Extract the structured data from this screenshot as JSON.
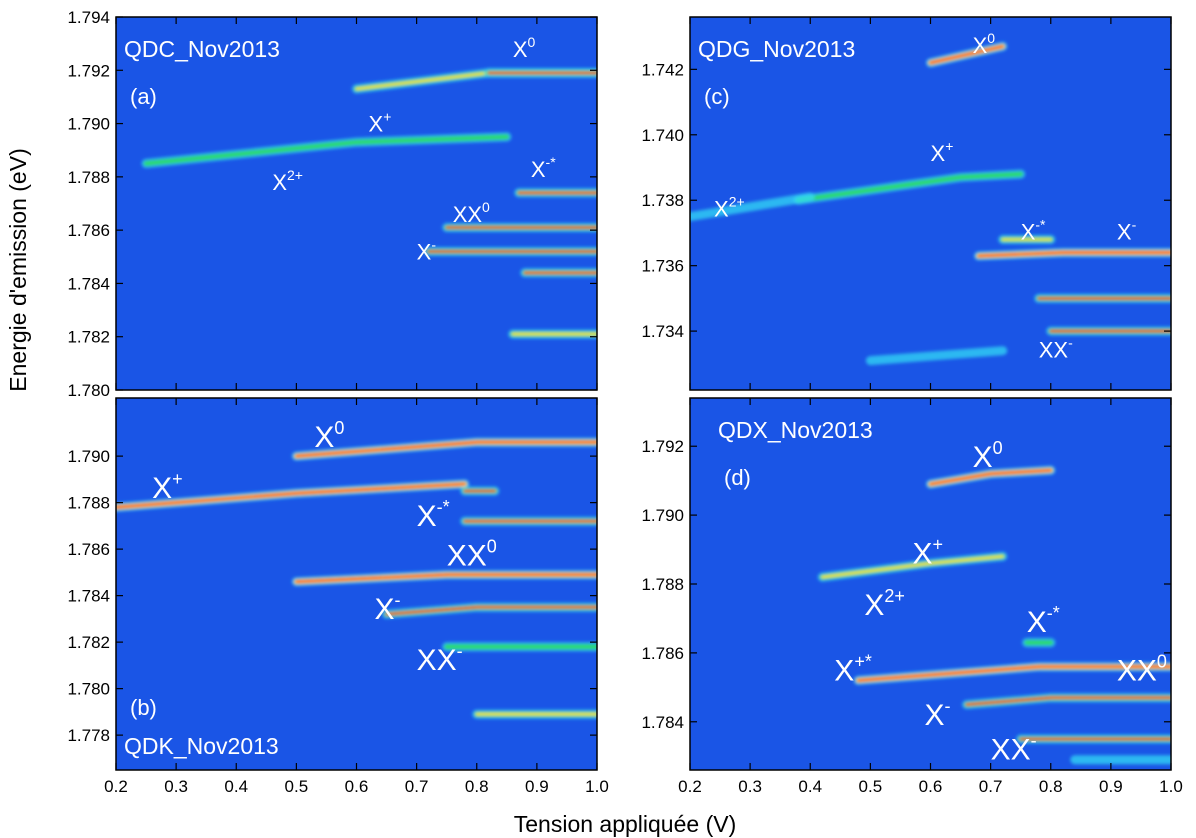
{
  "colors": {
    "background": "#1a55e6",
    "cyan": "#33d9f5",
    "green": "#2bd96a",
    "yellow": "#ffe23a",
    "red": "#ff1a00",
    "label": "#ffffff",
    "frame": "#000000"
  },
  "chart_data": [
    {
      "type": "heatmap",
      "panel": "a",
      "sample_label": "QDC_Nov2013",
      "panel_letter": "(a)",
      "xlabel": "Tension appliquée  (V)",
      "ylabel": "Energie d'emission (eV)",
      "xlim": [
        0.2,
        1.0
      ],
      "ylim": [
        1.78,
        1.794
      ],
      "x_ticks": [
        "0.2",
        "0.3",
        "0.4",
        "0.5",
        "0.6",
        "0.7",
        "0.8",
        "0.9",
        "1.0"
      ],
      "y_ticks": [
        "1.780",
        "1.782",
        "1.784",
        "1.786",
        "1.788",
        "1.790",
        "1.792",
        "1.794"
      ],
      "y_tick_values": [
        1.78,
        1.782,
        1.784,
        1.786,
        1.788,
        1.79,
        1.792,
        1.794
      ],
      "lines": [
        {
          "label": "X^0",
          "x": [
            0.6,
            0.82,
            1.0
          ],
          "y": [
            1.7913,
            1.7919,
            1.7919
          ],
          "intensity": 0.55
        },
        {
          "label": "X^0",
          "x": [
            0.82,
            1.0
          ],
          "y": [
            1.7919,
            1.7919
          ],
          "intensity": 1.0
        },
        {
          "label": "X^+",
          "x": [
            0.25,
            0.6,
            0.85
          ],
          "y": [
            1.7885,
            1.7893,
            1.7895
          ],
          "intensity": 0.4
        },
        {
          "label": "X^-*",
          "x": [
            0.87,
            1.0
          ],
          "y": [
            1.7874,
            1.7874
          ],
          "intensity": 1.0
        },
        {
          "label": "XX^0",
          "x": [
            0.75,
            1.0
          ],
          "y": [
            1.7861,
            1.7861
          ],
          "intensity": 0.9
        },
        {
          "label": "X^-",
          "x": [
            0.72,
            0.85,
            1.0
          ],
          "y": [
            1.7852,
            1.7852,
            1.7852
          ],
          "intensity": 1.0
        },
        {
          "label": "",
          "x": [
            0.88,
            1.0
          ],
          "y": [
            1.7844,
            1.7844
          ],
          "intensity": 0.95
        },
        {
          "label": "",
          "x": [
            0.86,
            1.0
          ],
          "y": [
            1.7821,
            1.7821
          ],
          "intensity": 0.6
        }
      ],
      "annotations": [
        {
          "base": "X",
          "sup": "0",
          "x": 0.86,
          "y": 1.7925
        },
        {
          "base": "X",
          "sup": "+",
          "x": 0.62,
          "y": 1.7897
        },
        {
          "base": "X",
          "sup": "2+",
          "x": 0.46,
          "y": 1.7875
        },
        {
          "base": "X",
          "sup": "-*",
          "x": 0.89,
          "y": 1.788
        },
        {
          "base": "XX",
          "sup": "0",
          "x": 0.76,
          "y": 1.7863
        },
        {
          "base": "X",
          "sup": "-",
          "x": 0.7,
          "y": 1.7849
        }
      ]
    },
    {
      "type": "heatmap",
      "panel": "c",
      "sample_label": "QDG_Nov2013",
      "panel_letter": "(c)",
      "xlim": [
        0.2,
        1.0
      ],
      "ylim": [
        1.7322,
        1.7436
      ],
      "x_ticks": [
        "0.2",
        "0.3",
        "0.4",
        "0.5",
        "0.6",
        "0.7",
        "0.8",
        "0.9",
        "1.0"
      ],
      "y_ticks": [
        "1.734",
        "1.736",
        "1.738",
        "1.740",
        "1.742"
      ],
      "y_tick_values": [
        1.734,
        1.736,
        1.738,
        1.74,
        1.742
      ],
      "lines": [
        {
          "label": "X^0",
          "x": [
            0.6,
            0.72
          ],
          "y": [
            1.7422,
            1.7427
          ],
          "intensity": 0.8
        },
        {
          "label": "X^+",
          "x": [
            0.38,
            0.65,
            0.75
          ],
          "y": [
            1.738,
            1.7387,
            1.7388
          ],
          "intensity": 0.45
        },
        {
          "label": "X^2+",
          "x": [
            0.2,
            0.4
          ],
          "y": [
            1.7375,
            1.7381
          ],
          "intensity": 0.25
        },
        {
          "label": "X^-*",
          "x": [
            0.72,
            0.8
          ],
          "y": [
            1.7368,
            1.7368
          ],
          "intensity": 0.6
        },
        {
          "label": "X^-",
          "x": [
            0.68,
            0.82,
            1.0
          ],
          "y": [
            1.7363,
            1.7364,
            1.7364
          ],
          "intensity": 0.7
        },
        {
          "label": "",
          "x": [
            0.78,
            0.85,
            1.0
          ],
          "y": [
            1.735,
            1.735,
            1.735
          ],
          "intensity": 1.0
        },
        {
          "label": "XX^-",
          "x": [
            0.8,
            0.88,
            1.0
          ],
          "y": [
            1.734,
            1.734,
            1.734
          ],
          "intensity": 1.0
        },
        {
          "label": "",
          "x": [
            0.5,
            0.72
          ],
          "y": [
            1.7331,
            1.7334
          ],
          "intensity": 0.3
        }
      ],
      "annotations": [
        {
          "base": "X",
          "sup": "0",
          "x": 0.67,
          "y": 1.7425
        },
        {
          "base": "X",
          "sup": "+",
          "x": 0.6,
          "y": 1.7392
        },
        {
          "base": "X",
          "sup": "2+",
          "x": 0.24,
          "y": 1.7375
        },
        {
          "base": "X",
          "sup": "-*",
          "x": 0.75,
          "y": 1.7368
        },
        {
          "base": "X",
          "sup": "-",
          "x": 0.91,
          "y": 1.7368
        },
        {
          "base": "XX",
          "sup": "-",
          "x": 0.78,
          "y": 1.7332
        }
      ]
    },
    {
      "type": "heatmap",
      "panel": "b",
      "sample_label": "QDK_Nov2013",
      "panel_letter": "(b)",
      "xlim": [
        0.2,
        1.0
      ],
      "ylim": [
        1.7765,
        1.7925
      ],
      "x_ticks": [
        "0.2",
        "0.3",
        "0.4",
        "0.5",
        "0.6",
        "0.7",
        "0.8",
        "0.9",
        "1.0"
      ],
      "y_ticks": [
        "1.778",
        "1.780",
        "1.782",
        "1.784",
        "1.786",
        "1.788",
        "1.790"
      ],
      "y_tick_values": [
        1.778,
        1.78,
        1.782,
        1.784,
        1.786,
        1.788,
        1.79
      ],
      "lines": [
        {
          "label": "X^0",
          "x": [
            0.5,
            0.8,
            1.0
          ],
          "y": [
            1.79,
            1.7906,
            1.7906
          ],
          "intensity": 0.85
        },
        {
          "label": "X^+",
          "x": [
            0.2,
            0.5,
            0.78
          ],
          "y": [
            1.7878,
            1.7884,
            1.7888
          ],
          "intensity": 0.75
        },
        {
          "label": "",
          "x": [
            0.78,
            0.83
          ],
          "y": [
            1.7885,
            1.7885
          ],
          "intensity": 0.9
        },
        {
          "label": "X^-*",
          "x": [
            0.78,
            0.85,
            1.0
          ],
          "y": [
            1.7872,
            1.7872,
            1.7872
          ],
          "intensity": 1.0
        },
        {
          "label": "XX^0",
          "x": [
            0.5,
            0.75,
            1.0
          ],
          "y": [
            1.7846,
            1.7849,
            1.7849
          ],
          "intensity": 0.7
        },
        {
          "label": "X^-",
          "x": [
            0.65,
            0.8,
            1.0
          ],
          "y": [
            1.7832,
            1.7835,
            1.7835
          ],
          "intensity": 1.0
        },
        {
          "label": "",
          "x": [
            0.75,
            1.0
          ],
          "y": [
            1.7818,
            1.7818
          ],
          "intensity": 0.35
        },
        {
          "label": "",
          "x": [
            0.8,
            1.0
          ],
          "y": [
            1.7789,
            1.7789
          ],
          "intensity": 0.65
        }
      ],
      "annotations": [
        {
          "base": "X",
          "sup": "0",
          "x": 0.53,
          "y": 1.7904
        },
        {
          "base": "X",
          "sup": "+",
          "x": 0.26,
          "y": 1.7882
        },
        {
          "base": "X",
          "sup": "-*",
          "x": 0.7,
          "y": 1.787
        },
        {
          "base": "XX",
          "sup": "0",
          "x": 0.75,
          "y": 1.7853
        },
        {
          "base": "X",
          "sup": "-",
          "x": 0.63,
          "y": 1.783
        },
        {
          "base": "XX",
          "sup": "-",
          "x": 0.7,
          "y": 1.7808
        }
      ]
    },
    {
      "type": "heatmap",
      "panel": "d",
      "sample_label": "QDX_Nov2013",
      "panel_letter": "(d)",
      "xlim": [
        0.2,
        1.0
      ],
      "ylim": [
        1.7826,
        1.7934
      ],
      "x_ticks": [
        "0.2",
        "0.3",
        "0.4",
        "0.5",
        "0.6",
        "0.7",
        "0.8",
        "0.9",
        "1.0"
      ],
      "y_ticks": [
        "1.784",
        "1.786",
        "1.788",
        "1.790",
        "1.792"
      ],
      "y_tick_values": [
        1.784,
        1.786,
        1.788,
        1.79,
        1.792
      ],
      "lines": [
        {
          "label": "X^0",
          "x": [
            0.6,
            0.7,
            0.8
          ],
          "y": [
            1.7909,
            1.7912,
            1.7913
          ],
          "intensity": 0.85
        },
        {
          "label": "X^+",
          "x": [
            0.42,
            0.6,
            0.72
          ],
          "y": [
            1.7882,
            1.7886,
            1.7888
          ],
          "intensity": 0.6
        },
        {
          "label": "X^-*",
          "x": [
            0.76,
            0.8
          ],
          "y": [
            1.7863,
            1.7863
          ],
          "intensity": 0.45
        },
        {
          "label": "X^+*",
          "x": [
            0.48,
            0.78,
            1.0
          ],
          "y": [
            1.7852,
            1.7856,
            1.7856
          ],
          "intensity": 0.75
        },
        {
          "label": "XX^0",
          "x": [
            0.66,
            0.8,
            1.0
          ],
          "y": [
            1.7845,
            1.7847,
            1.7847
          ],
          "intensity": 1.0
        },
        {
          "label": "XX^-",
          "x": [
            0.75,
            0.86,
            1.0
          ],
          "y": [
            1.7835,
            1.7835,
            1.7835
          ],
          "intensity": 1.0
        },
        {
          "label": "",
          "x": [
            0.84,
            1.0
          ],
          "y": [
            1.7829,
            1.7829
          ],
          "intensity": 0.3
        }
      ],
      "annotations": [
        {
          "base": "X",
          "sup": "0",
          "x": 0.67,
          "y": 1.7914
        },
        {
          "base": "X",
          "sup": "+",
          "x": 0.57,
          "y": 1.7886
        },
        {
          "base": "X",
          "sup": "2+",
          "x": 0.49,
          "y": 1.7871
        },
        {
          "base": "X",
          "sup": "-*",
          "x": 0.76,
          "y": 1.7866
        },
        {
          "base": "X",
          "sup": "+*",
          "x": 0.44,
          "y": 1.7852
        },
        {
          "base": "XX",
          "sup": "0",
          "x": 0.91,
          "y": 1.7852
        },
        {
          "base": "X",
          "sup": "-",
          "x": 0.59,
          "y": 1.7839
        },
        {
          "base": "XX",
          "sup": "-",
          "x": 0.7,
          "y": 1.7829
        }
      ]
    }
  ]
}
